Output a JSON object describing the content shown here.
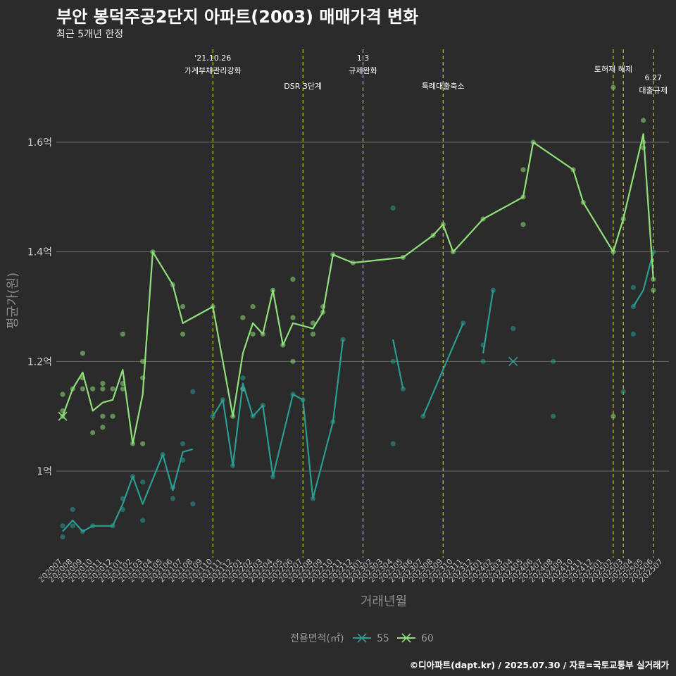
{
  "title": "부안 봉덕주공2단지 아파트(2003) 매매가격 변화",
  "subtitle": "최근 5개년 한정",
  "caption": "©디아파트(dapt.kr) / 2025.07.30 / 자료=국토교통부 실거래가",
  "chart_data": {
    "type": "line",
    "xlabel": "거래년월",
    "ylabel": "평균가(원)",
    "ylim": [
      0.84,
      1.77
    ],
    "y_ticks": [
      1.0,
      1.2,
      1.4,
      1.6
    ],
    "y_tick_labels": [
      "1억",
      "1.2억",
      "1.4억",
      "1.6억"
    ],
    "x_labels": [
      "202007",
      "202008",
      "202009",
      "202010",
      "202011",
      "202012",
      "202101",
      "202102",
      "202103",
      "202104",
      "202105",
      "202106",
      "202107",
      "202108",
      "202109",
      "202110",
      "202111",
      "202112",
      "202201",
      "202202",
      "202203",
      "202204",
      "202205",
      "202206",
      "202207",
      "202208",
      "202209",
      "202210",
      "202211",
      "202212",
      "202301",
      "202302",
      "202303",
      "202304",
      "202305",
      "202306",
      "202307",
      "202308",
      "202309",
      "202310",
      "202311",
      "202312",
      "202401",
      "202402",
      "202403",
      "202404",
      "202405",
      "202406",
      "202407",
      "202408",
      "202409",
      "202410",
      "202411",
      "202412",
      "202501",
      "202502",
      "202503",
      "202504",
      "202505",
      "202506",
      "202507"
    ],
    "grid": true,
    "legend": {
      "title": "전용면적(㎡)",
      "position": "bottom",
      "entries": [
        "55",
        "60"
      ]
    },
    "colors": {
      "55": "#2a9d93",
      "60": "#90e07a",
      "event": "#e8e820"
    },
    "events": [
      {
        "x": 15,
        "label": "'21.10.26\n가계부채관리강화",
        "row": 0
      },
      {
        "x": 24,
        "label": "DSR 3단계",
        "row": 1
      },
      {
        "x": 30,
        "label": "1.3\n규제완화",
        "row": 0
      },
      {
        "x": 38,
        "label": "특례대출축소",
        "row": 1
      },
      {
        "x": 55,
        "label": "토허제 해제",
        "row": 0
      },
      {
        "x": 56,
        "label": "",
        "row": 0
      },
      {
        "x": 59,
        "label": "6.27\n대출규제",
        "row": 2
      }
    ],
    "series": [
      {
        "name": "55",
        "segments": [
          [
            [
              0,
              0.89
            ],
            [
              1,
              0.91
            ],
            [
              2,
              0.89
            ],
            [
              3,
              0.9
            ],
            [
              4,
              0.9
            ],
            [
              5,
              0.9
            ],
            [
              6,
              0.94
            ],
            [
              7,
              0.99
            ],
            [
              8,
              0.94
            ],
            [
              10,
              1.03
            ],
            [
              11,
              0.965
            ],
            [
              12,
              1.035
            ],
            [
              13,
              1.04
            ]
          ],
          [
            [
              15,
              1.1
            ],
            [
              16,
              1.13
            ],
            [
              17,
              1.01
            ],
            [
              18,
              1.16
            ],
            [
              19,
              1.1
            ],
            [
              20,
              1.12
            ],
            [
              21,
              0.99
            ],
            [
              23,
              1.14
            ],
            [
              24,
              1.13
            ],
            [
              25,
              0.95
            ],
            [
              27,
              1.09
            ],
            [
              28,
              1.24
            ]
          ],
          [
            [
              33,
              1.24
            ],
            [
              34,
              1.15
            ]
          ],
          [
            [
              36,
              1.1
            ],
            [
              40,
              1.27
            ]
          ],
          [
            [
              42,
              1.215
            ],
            [
              43,
              1.33
            ]
          ],
          [
            [
              57,
              1.3
            ],
            [
              58,
              1.33
            ],
            [
              59,
              1.4
            ]
          ]
        ],
        "points": [
          [
            0,
            0.9
          ],
          [
            0,
            0.88
          ],
          [
            1,
            0.93
          ],
          [
            1,
            0.9
          ],
          [
            2,
            0.89
          ],
          [
            3,
            0.9
          ],
          [
            5,
            0.9
          ],
          [
            6,
            0.95
          ],
          [
            6,
            0.93
          ],
          [
            7,
            0.99
          ],
          [
            8,
            0.98
          ],
          [
            8,
            0.91
          ],
          [
            10,
            1.03
          ],
          [
            11,
            0.97
          ],
          [
            11,
            0.95
          ],
          [
            12,
            1.05
          ],
          [
            12,
            1.02
          ],
          [
            13,
            1.145
          ],
          [
            13,
            0.94
          ],
          [
            15,
            1.1
          ],
          [
            16,
            1.13
          ],
          [
            17,
            1.01
          ],
          [
            18,
            1.17
          ],
          [
            18,
            1.15
          ],
          [
            19,
            1.1
          ],
          [
            20,
            1.12
          ],
          [
            21,
            0.99
          ],
          [
            23,
            1.14
          ],
          [
            24,
            1.13
          ],
          [
            25,
            0.95
          ],
          [
            27,
            1.09
          ],
          [
            28,
            1.24
          ],
          [
            33,
            1.48
          ],
          [
            33,
            1.2
          ],
          [
            33,
            1.05
          ],
          [
            34,
            1.15
          ],
          [
            36,
            1.1
          ],
          [
            40,
            1.27
          ],
          [
            42,
            1.23
          ],
          [
            42,
            1.2
          ],
          [
            43,
            1.33
          ],
          [
            45,
            1.26
          ],
          [
            49,
            1.2
          ],
          [
            49,
            1.1
          ],
          [
            56,
            1.145
          ],
          [
            57,
            1.335
          ],
          [
            57,
            1.3
          ],
          [
            57,
            1.25
          ],
          [
            59,
            1.4
          ]
        ],
        "cross": [
          [
            45,
            1.2
          ]
        ]
      },
      {
        "name": "60",
        "segments": [
          [
            [
              0,
              1.1
            ],
            [
              1,
              1.15
            ],
            [
              2,
              1.18
            ],
            [
              3,
              1.11
            ],
            [
              4,
              1.125
            ],
            [
              5,
              1.13
            ],
            [
              6,
              1.185
            ],
            [
              7,
              1.05
            ],
            [
              8,
              1.14
            ],
            [
              9,
              1.4
            ],
            [
              11,
              1.34
            ],
            [
              12,
              1.27
            ],
            [
              15,
              1.3
            ],
            [
              17,
              1.1
            ],
            [
              18,
              1.215
            ],
            [
              19,
              1.27
            ],
            [
              20,
              1.25
            ],
            [
              21,
              1.33
            ],
            [
              22,
              1.23
            ],
            [
              23,
              1.27
            ],
            [
              25,
              1.26
            ],
            [
              26,
              1.29
            ],
            [
              27,
              1.395
            ],
            [
              29,
              1.38
            ],
            [
              34,
              1.39
            ],
            [
              37,
              1.43
            ],
            [
              38,
              1.45
            ],
            [
              39,
              1.4
            ],
            [
              42,
              1.46
            ],
            [
              46,
              1.5
            ],
            [
              47,
              1.6
            ],
            [
              51,
              1.55
            ],
            [
              52,
              1.49
            ],
            [
              55,
              1.4
            ],
            [
              56,
              1.46
            ],
            [
              58,
              1.615
            ],
            [
              59,
              1.35
            ]
          ]
        ],
        "points": [
          [
            0,
            1.14
          ],
          [
            0,
            1.11
          ],
          [
            0,
            1.1
          ],
          [
            1,
            1.15
          ],
          [
            2,
            1.215
          ],
          [
            2,
            1.17
          ],
          [
            2,
            1.15
          ],
          [
            3,
            1.15
          ],
          [
            3,
            1.07
          ],
          [
            4,
            1.16
          ],
          [
            4,
            1.15
          ],
          [
            4,
            1.1
          ],
          [
            4,
            1.08
          ],
          [
            5,
            1.15
          ],
          [
            5,
            1.1
          ],
          [
            6,
            1.25
          ],
          [
            6,
            1.16
          ],
          [
            6,
            1.15
          ],
          [
            7,
            1.05
          ],
          [
            8,
            1.2
          ],
          [
            8,
            1.17
          ],
          [
            8,
            1.05
          ],
          [
            9,
            1.4
          ],
          [
            11,
            1.34
          ],
          [
            12,
            1.3
          ],
          [
            12,
            1.25
          ],
          [
            15,
            1.3
          ],
          [
            17,
            1.1
          ],
          [
            18,
            1.28
          ],
          [
            18,
            1.15
          ],
          [
            19,
            1.3
          ],
          [
            19,
            1.25
          ],
          [
            20,
            1.25
          ],
          [
            21,
            1.33
          ],
          [
            22,
            1.23
          ],
          [
            23,
            1.35
          ],
          [
            23,
            1.28
          ],
          [
            23,
            1.2
          ],
          [
            25,
            1.27
          ],
          [
            25,
            1.25
          ],
          [
            26,
            1.3
          ],
          [
            26,
            1.29
          ],
          [
            27,
            1.395
          ],
          [
            29,
            1.38
          ],
          [
            34,
            1.39
          ],
          [
            37,
            1.43
          ],
          [
            38,
            1.45
          ],
          [
            39,
            1.4
          ],
          [
            42,
            1.46
          ],
          [
            46,
            1.55
          ],
          [
            46,
            1.5
          ],
          [
            46,
            1.45
          ],
          [
            47,
            1.6
          ],
          [
            51,
            1.55
          ],
          [
            52,
            1.49
          ],
          [
            55,
            1.7
          ],
          [
            55,
            1.4
          ],
          [
            55,
            1.1
          ],
          [
            56,
            1.46
          ],
          [
            58,
            1.64
          ],
          [
            58,
            1.6
          ],
          [
            58,
            1.59
          ],
          [
            59,
            1.35
          ],
          [
            59,
            1.33
          ]
        ],
        "cross": [
          [
            0,
            1.1
          ]
        ]
      }
    ]
  }
}
